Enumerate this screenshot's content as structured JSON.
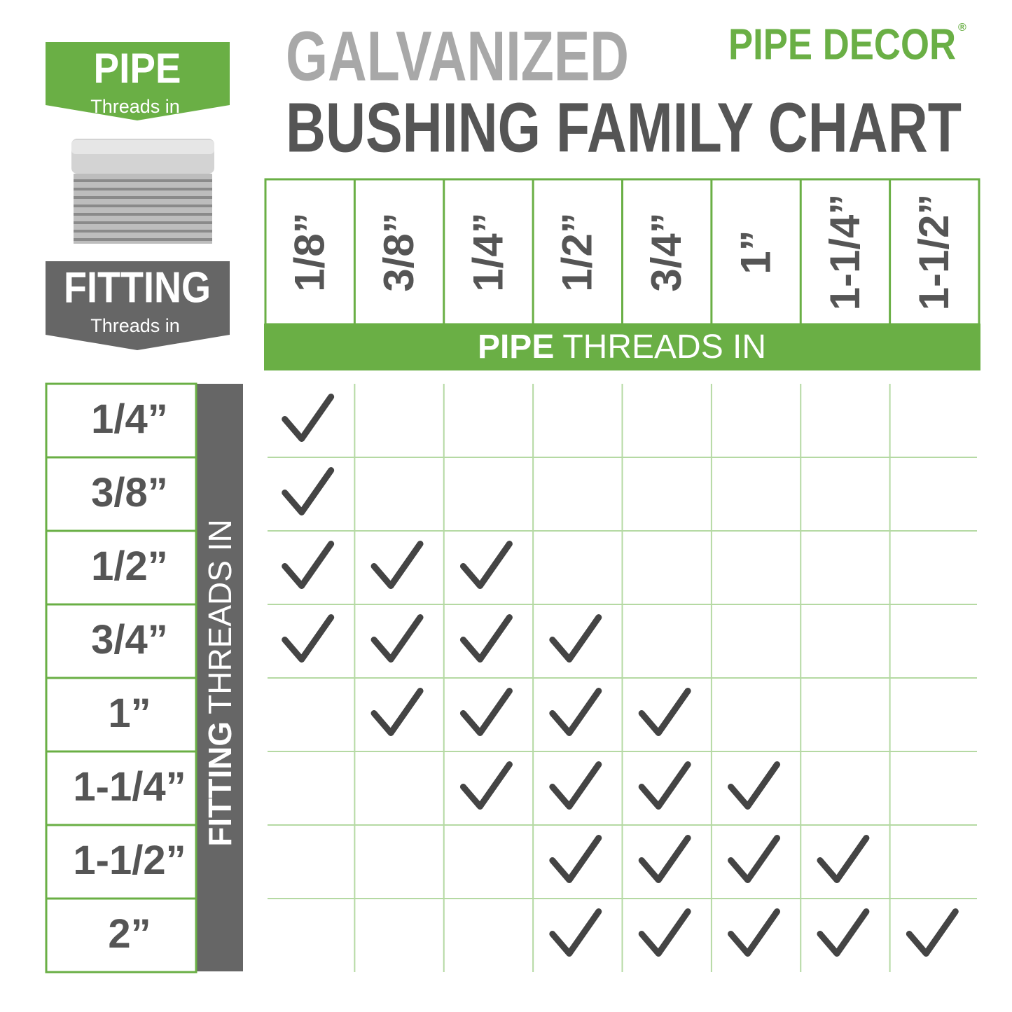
{
  "header": {
    "title_line1": "GALVANIZED",
    "title_line2": "BUSHING FAMILY CHART",
    "brand": "PIPE DECOR",
    "brand_mark": "®"
  },
  "legend": {
    "pipe": {
      "label": "PIPE",
      "sub": "Threads in"
    },
    "fitting": {
      "label": "FITTING",
      "sub": "Threads in"
    }
  },
  "table": {
    "column_axis": {
      "bold": "PIPE",
      "rest": "THREADS IN"
    },
    "row_axis": {
      "bold": "FITTING",
      "rest": "THREADS IN"
    },
    "columns": [
      "1/8”",
      "3/8”",
      "1/4”",
      "1/2”",
      "3/4”",
      "1”",
      "1-1/4”",
      "1-1/2”"
    ],
    "rows": [
      "1/4”",
      "3/8”",
      "1/2”",
      "3/4”",
      "1”",
      "1-1/4”",
      "1-1/2”",
      "2”"
    ],
    "checks": [
      [
        true,
        false,
        false,
        false,
        false,
        false,
        false,
        false
      ],
      [
        true,
        false,
        false,
        false,
        false,
        false,
        false,
        false
      ],
      [
        true,
        true,
        true,
        false,
        false,
        false,
        false,
        false
      ],
      [
        true,
        true,
        true,
        true,
        false,
        false,
        false,
        false
      ],
      [
        false,
        true,
        true,
        true,
        true,
        false,
        false,
        false
      ],
      [
        false,
        false,
        true,
        true,
        true,
        true,
        false,
        false
      ],
      [
        false,
        false,
        false,
        true,
        true,
        true,
        true,
        false
      ],
      [
        false,
        false,
        false,
        true,
        true,
        true,
        true,
        true
      ]
    ]
  }
}
